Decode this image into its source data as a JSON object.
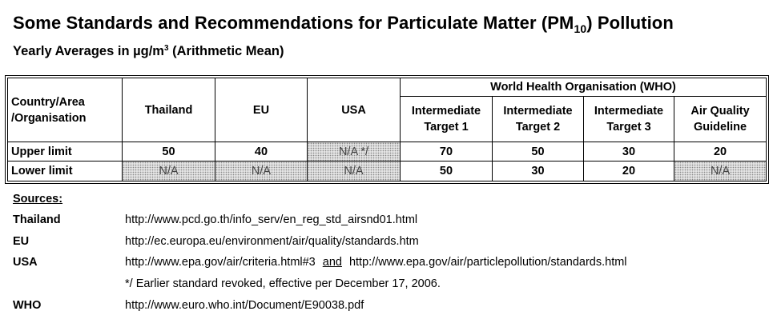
{
  "title": {
    "before": "Some Standards and Recommendations for Particulate Matter (PM",
    "subscript": "10",
    "after": ") Pollution"
  },
  "subtitle": {
    "before": "Yearly Averages in µg/m",
    "superscript": "3",
    "after": " (Arithmetic Mean)"
  },
  "table": {
    "corner": "Country/Area /Organisation",
    "who_group": "World Health Organisation (WHO)",
    "columns": [
      "Thailand",
      "EU",
      "USA",
      "Intermediate Target 1",
      "Intermediate Target 2",
      "Intermediate Target 3",
      "Air Quality Guideline"
    ],
    "rows": [
      {
        "label": "Upper limit",
        "cells": [
          "50",
          "40",
          "N/A */",
          "70",
          "50",
          "30",
          "20"
        ]
      },
      {
        "label": "Lower limit",
        "cells": [
          "N/A",
          "N/A",
          "N/A",
          "50",
          "30",
          "20",
          "N/A"
        ]
      }
    ]
  },
  "sources": {
    "label": "Sources:",
    "thailand": {
      "name": "Thailand",
      "url": "http://www.pcd.go.th/info_serv/en_reg_std_airsnd01.html"
    },
    "eu": {
      "name": "EU",
      "url": "http://ec.europa.eu/environment/air/quality/standards.htm"
    },
    "usa": {
      "name": "USA",
      "url1": "http://www.epa.gov/air/criteria.html#3",
      "and": "and",
      "url2": "http://www.epa.gov/air/particlepollution/standards.html",
      "note": "*/ Earlier standard revoked, effective per December 17, 2006."
    },
    "who": {
      "name": "WHO",
      "url": "http://www.euro.who.int/Document/E90038.pdf"
    }
  }
}
